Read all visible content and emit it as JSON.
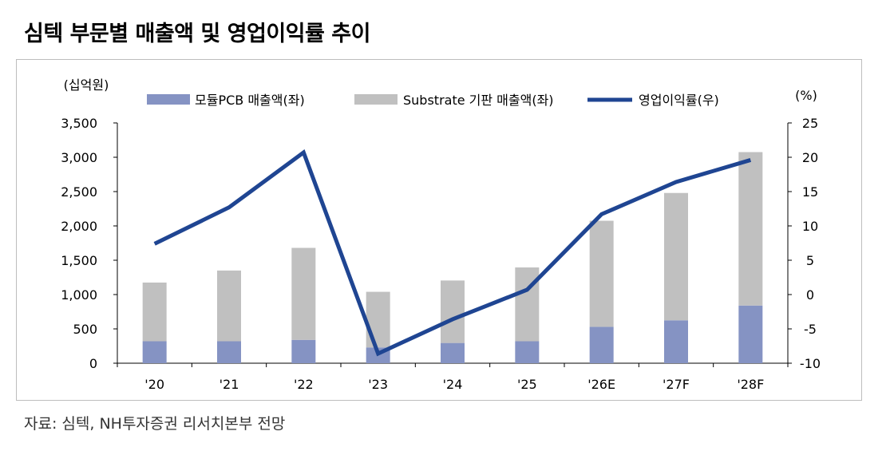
{
  "title": "심텍 부문별 매출액 및 영업이익률 추이",
  "source": "자료: 심텍, NH투자증권 리서치본부 전망",
  "colors": {
    "module_pcb": "#8593c3",
    "substrate": "#c0c0c0",
    "margin_line": "#1f4592"
  },
  "chart_data": {
    "type": "bar",
    "stacked": true,
    "categories": [
      "'20",
      "'21",
      "'22",
      "'23",
      "'24",
      "'25",
      "'26E",
      "'27F",
      "'28F"
    ],
    "series": [
      {
        "name": "모듈PCB 매출액(좌)",
        "type": "bar",
        "axis": "left",
        "values": [
          320,
          320,
          340,
          230,
          295,
          320,
          530,
          625,
          840
        ]
      },
      {
        "name": "Substrate 기판 매출액(좌)",
        "type": "bar",
        "axis": "left",
        "values": [
          855,
          1030,
          1340,
          810,
          910,
          1075,
          1545,
          1855,
          2235
        ]
      },
      {
        "name": "영업이익률(우)",
        "type": "line",
        "axis": "right",
        "values": [
          7.4,
          12.7,
          20.7,
          -8.6,
          -3.6,
          0.7,
          11.7,
          16.4,
          19.6
        ]
      }
    ],
    "left_axis": {
      "unit": "(십억원)",
      "ylim": [
        0,
        3500
      ],
      "ticks": [
        "3,500",
        "3,000",
        "2,500",
        "2,000",
        "1,500",
        "1,000",
        "500",
        "0"
      ]
    },
    "right_axis": {
      "unit": "(%)",
      "ylim": [
        -10,
        25
      ],
      "ticks": [
        "25",
        "20",
        "15",
        "10",
        "5",
        "0",
        "-5",
        "-10"
      ]
    },
    "legend": {
      "position": "top"
    },
    "grid": false
  }
}
